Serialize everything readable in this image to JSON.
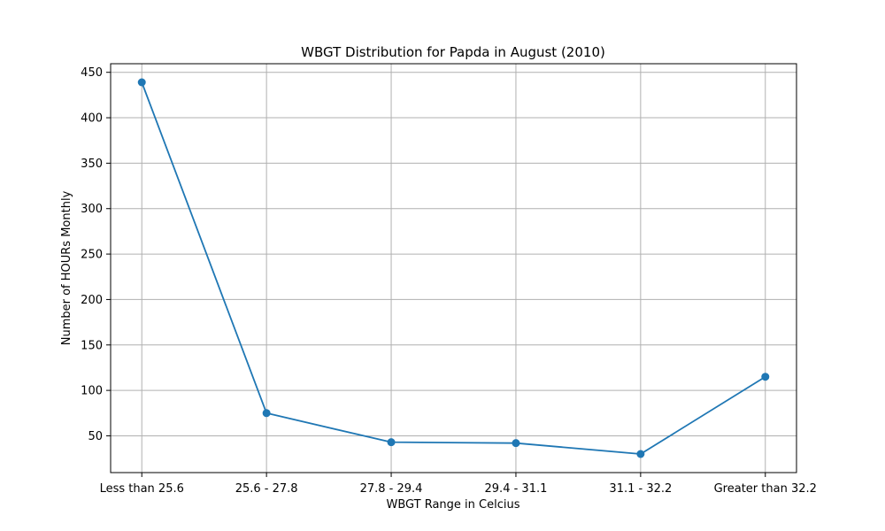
{
  "chart_data": {
    "type": "line",
    "title": "WBGT Distribution for Papda in August (2010)",
    "xlabel": "WBGT Range in Celcius",
    "ylabel": "Number of HOURs Monthly",
    "categories": [
      "Less than 25.6",
      "25.6 - 27.8",
      "27.8 - 29.4",
      "29.4 - 31.1",
      "31.1 - 32.2",
      "Greater than 32.2"
    ],
    "values": [
      439,
      75,
      43,
      42,
      30,
      115
    ],
    "ylim": [
      9.55,
      459.45
    ],
    "yticks": [
      50,
      100,
      150,
      200,
      250,
      300,
      350,
      400,
      450
    ],
    "grid": true,
    "marker": "circle",
    "colors": {
      "line": "#1f77b4",
      "grid": "#b0b0b0",
      "axes": "#000000"
    }
  }
}
